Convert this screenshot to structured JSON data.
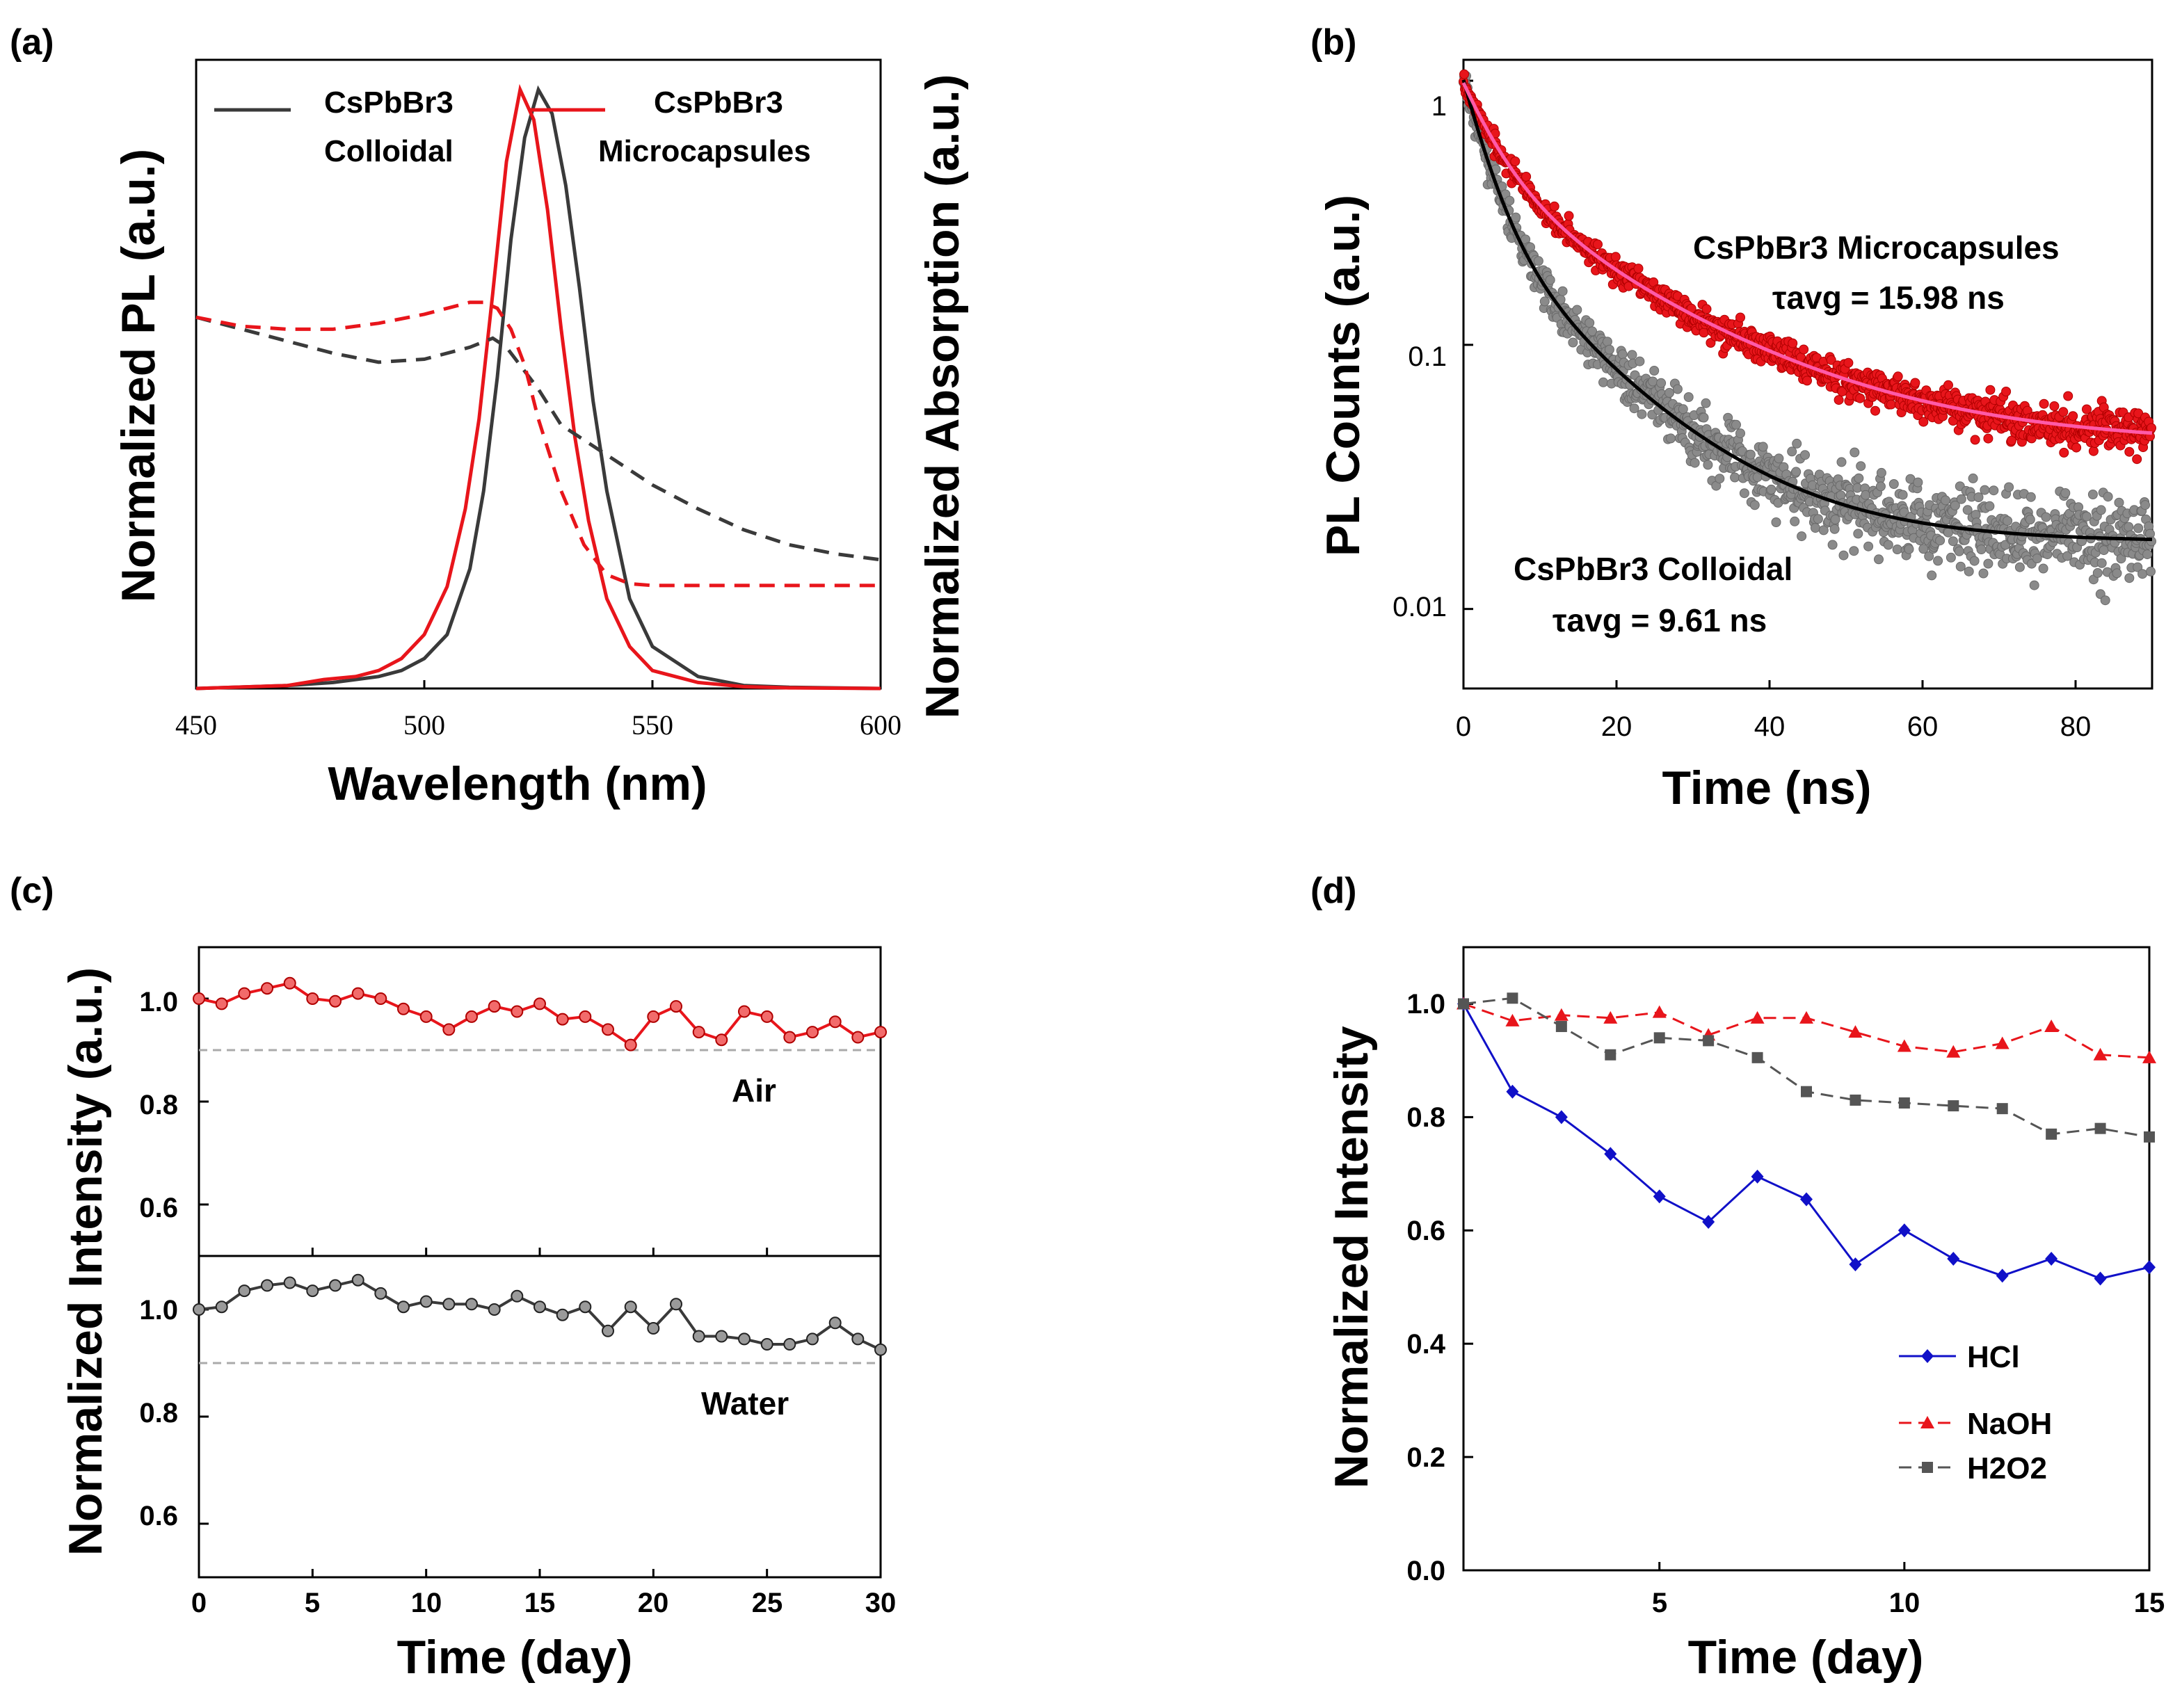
{
  "panels": {
    "a": {
      "label": "(a)",
      "xlabel": "Wavelength (nm)",
      "ylabel": "Normalized PL (a.u.)",
      "ylabel2": "Normalized Absorption (a.u.)",
      "xticks": [
        "450",
        "500",
        "550",
        "600"
      ],
      "legend": [
        {
          "line1": "CsPbBr3",
          "line2": "Colloidal",
          "color": "#3a3a3a"
        },
        {
          "line1": "CsPbBr3",
          "line2": "Microcapsules",
          "color": "#e8151b"
        }
      ]
    },
    "b": {
      "label": "(b)",
      "xlabel": "Time (ns)",
      "ylabel": "PL Counts (a.u.)",
      "xticks": [
        "0",
        "20",
        "40",
        "60",
        "80"
      ],
      "yticks": [
        "1",
        "0.1",
        "0.01"
      ],
      "ann_micro_name": "CsPbBr3 Microcapsules",
      "ann_micro_tau": "τavg = 15.98 ns",
      "ann_coll_name": "CsPbBr3 Colloidal",
      "ann_coll_tau": "τavg = 9.61 ns"
    },
    "c": {
      "label": "(c)",
      "xlabel": "Time (day)",
      "ylabel": "Normalized Intensity (a.u.)",
      "xticks": [
        "0",
        "5",
        "10",
        "15",
        "20",
        "25",
        "30"
      ],
      "yticks": [
        "1.0",
        "0.8",
        "0.6"
      ],
      "air_label": "Air",
      "water_label": "Water"
    },
    "d": {
      "label": "(d)",
      "xlabel": "Time (day)",
      "ylabel": "Normalized Intensity",
      "xticks": [
        "5",
        "10",
        "15"
      ],
      "yticks": [
        "0.0",
        "0.2",
        "0.4",
        "0.6",
        "0.8",
        "1.0"
      ],
      "legend": [
        "HCl",
        "NaOH",
        "H2O2"
      ]
    }
  },
  "colors": {
    "red": "#e8151b",
    "dark": "#3a3a3a",
    "gray": "#8a8a8a",
    "blue": "#1010c8",
    "pink": "#ff5aa8",
    "dashed": "#aaaaaa"
  },
  "chart_data": [
    {
      "panel": "a",
      "type": "line",
      "title": "",
      "xlabel": "Wavelength (nm)",
      "ylabel": "Normalized PL (a.u.)",
      "y2label": "Normalized Absorption (a.u.)",
      "xlim": [
        450,
        600
      ],
      "ylim": [
        0,
        1.05
      ],
      "series": [
        {
          "name": "CsPbBr3 Colloidal PL",
          "style": "solid",
          "color": "#3a3a3a",
          "x": [
            450,
            470,
            480,
            490,
            495,
            500,
            505,
            510,
            513,
            516,
            519,
            522,
            525,
            528,
            531,
            534,
            537,
            540,
            545,
            550,
            560,
            570,
            580,
            600
          ],
          "y": [
            0,
            0.005,
            0.01,
            0.02,
            0.03,
            0.05,
            0.09,
            0.2,
            0.33,
            0.52,
            0.75,
            0.92,
            1.0,
            0.96,
            0.84,
            0.67,
            0.48,
            0.33,
            0.15,
            0.07,
            0.02,
            0.005,
            0.002,
            0
          ]
        },
        {
          "name": "CsPbBr3 Microcapsules PL",
          "style": "solid",
          "color": "#e8151b",
          "x": [
            450,
            470,
            478,
            485,
            490,
            495,
            500,
            505,
            509,
            512,
            515,
            518,
            521,
            524,
            527,
            530,
            533,
            536,
            540,
            545,
            550,
            560,
            570,
            580,
            600
          ],
          "y": [
            0,
            0.005,
            0.015,
            0.02,
            0.03,
            0.05,
            0.09,
            0.17,
            0.3,
            0.45,
            0.66,
            0.88,
            1.0,
            0.95,
            0.8,
            0.6,
            0.42,
            0.28,
            0.15,
            0.07,
            0.03,
            0.01,
            0.003,
            0.001,
            0
          ]
        },
        {
          "name": "CsPbBr3 Colloidal Abs",
          "style": "dashed",
          "color": "#3a3a3a",
          "x": [
            450,
            460,
            470,
            480,
            490,
            500,
            510,
            515,
            518,
            520,
            525,
            530,
            540,
            550,
            560,
            570,
            580,
            590,
            600
          ],
          "y": [
            0.62,
            0.6,
            0.58,
            0.56,
            0.545,
            0.55,
            0.57,
            0.585,
            0.57,
            0.55,
            0.5,
            0.44,
            0.39,
            0.34,
            0.3,
            0.265,
            0.24,
            0.225,
            0.215
          ]
        },
        {
          "name": "CsPbBr3 Microcapsules Abs",
          "style": "dashed",
          "color": "#e8151b",
          "x": [
            450,
            460,
            470,
            480,
            490,
            500,
            505,
            510,
            513,
            516,
            519,
            522,
            525,
            530,
            535,
            540,
            545,
            550,
            560,
            580,
            600
          ],
          "y": [
            0.62,
            0.605,
            0.6,
            0.6,
            0.61,
            0.625,
            0.635,
            0.645,
            0.645,
            0.635,
            0.6,
            0.54,
            0.45,
            0.33,
            0.24,
            0.19,
            0.175,
            0.172,
            0.172,
            0.172,
            0.172
          ]
        }
      ]
    },
    {
      "panel": "b",
      "type": "scatter",
      "title": "",
      "xlabel": "Time (ns)",
      "ylabel": "PL Counts (a.u.)",
      "xlim": [
        0,
        90
      ],
      "ylim": [
        0.005,
        1.2
      ],
      "yscale": "log",
      "series": [
        {
          "name": "CsPbBr3 Microcapsules (data)",
          "marker": "circle",
          "color": "#e8151b",
          "tau_avg_ns": 15.98,
          "model": {
            "A1": 0.55,
            "t1": 4.5,
            "A2": 0.39,
            "t2": 20,
            "B": 0.042
          }
        },
        {
          "name": "CsPbBr3 Colloidal (data)",
          "marker": "circle",
          "color": "#8a8a8a",
          "tau_avg_ns": 9.61,
          "model": {
            "A1": 0.72,
            "t1": 3.2,
            "A2": 0.27,
            "t2": 13.5,
            "B": 0.018
          }
        },
        {
          "name": "CsPbBr3 Microcapsules fit",
          "style": "line",
          "color": "#ff5aa8"
        },
        {
          "name": "CsPbBr3 Colloidal fit",
          "style": "line",
          "color": "#000000"
        }
      ]
    },
    {
      "panel": "c",
      "type": "line",
      "title": "",
      "xlabel": "Time (day)",
      "ylabel": "Normalized Intensity (a.u.)",
      "xlim": [
        0,
        30
      ],
      "ylim": [
        0.5,
        1.1
      ],
      "reference_line": 0.9,
      "series": [
        {
          "name": "Air",
          "color": "#e8151b",
          "x": [
            0,
            1,
            2,
            3,
            4,
            5,
            6,
            7,
            8,
            9,
            10,
            11,
            12,
            13,
            14,
            15,
            16,
            17,
            18,
            19,
            20,
            21,
            22,
            23,
            24,
            25,
            26,
            27,
            28,
            29,
            30
          ],
          "y": [
            1.0,
            0.99,
            1.01,
            1.02,
            1.03,
            1.0,
            0.995,
            1.01,
            1.0,
            0.98,
            0.965,
            0.94,
            0.965,
            0.985,
            0.975,
            0.99,
            0.96,
            0.965,
            0.94,
            0.91,
            0.965,
            0.985,
            0.935,
            0.92,
            0.975,
            0.965,
            0.925,
            0.935,
            0.955,
            0.925,
            0.935
          ]
        },
        {
          "name": "Water",
          "color": "#3a3a3a",
          "x": [
            0,
            1,
            2,
            3,
            4,
            5,
            6,
            7,
            8,
            9,
            10,
            11,
            12,
            13,
            14,
            15,
            16,
            17,
            18,
            19,
            20,
            21,
            22,
            23,
            24,
            25,
            26,
            27,
            28,
            29,
            30
          ],
          "y": [
            1.0,
            1.005,
            1.035,
            1.045,
            1.05,
            1.035,
            1.045,
            1.055,
            1.03,
            1.005,
            1.015,
            1.01,
            1.01,
            1.0,
            1.025,
            1.005,
            0.99,
            1.005,
            0.96,
            1.005,
            0.965,
            1.01,
            0.95,
            0.95,
            0.945,
            0.935,
            0.935,
            0.945,
            0.975,
            0.945,
            0.925
          ]
        }
      ]
    },
    {
      "panel": "d",
      "type": "line",
      "title": "",
      "xlabel": "Time (day)",
      "ylabel": "Normalized Intensity",
      "xlim": [
        1,
        15
      ],
      "ylim": [
        0,
        1.1
      ],
      "series": [
        {
          "name": "HCl",
          "marker": "diamond",
          "color": "#1010c8",
          "x": [
            1,
            2,
            3,
            4,
            5,
            6,
            7,
            8,
            9,
            10,
            11,
            12,
            13,
            14,
            15
          ],
          "y": [
            1.0,
            0.845,
            0.8,
            0.735,
            0.66,
            0.615,
            0.695,
            0.655,
            0.54,
            0.6,
            0.55,
            0.52,
            0.55,
            0.515,
            0.535
          ]
        },
        {
          "name": "NaOH",
          "marker": "triangle",
          "color": "#e8151b",
          "x": [
            1,
            2,
            3,
            4,
            5,
            6,
            7,
            8,
            9,
            10,
            11,
            12,
            13,
            14,
            15
          ],
          "y": [
            1.0,
            0.97,
            0.98,
            0.975,
            0.985,
            0.945,
            0.975,
            0.975,
            0.95,
            0.925,
            0.915,
            0.93,
            0.96,
            0.91,
            0.905
          ]
        },
        {
          "name": "H2O2",
          "marker": "square",
          "color": "#555555",
          "x": [
            1,
            2,
            3,
            4,
            5,
            6,
            7,
            8,
            9,
            10,
            11,
            12,
            13,
            14,
            15
          ],
          "y": [
            1.0,
            1.01,
            0.96,
            0.91,
            0.94,
            0.935,
            0.905,
            0.845,
            0.83,
            0.825,
            0.82,
            0.815,
            0.77,
            0.78,
            0.765
          ]
        }
      ]
    }
  ]
}
